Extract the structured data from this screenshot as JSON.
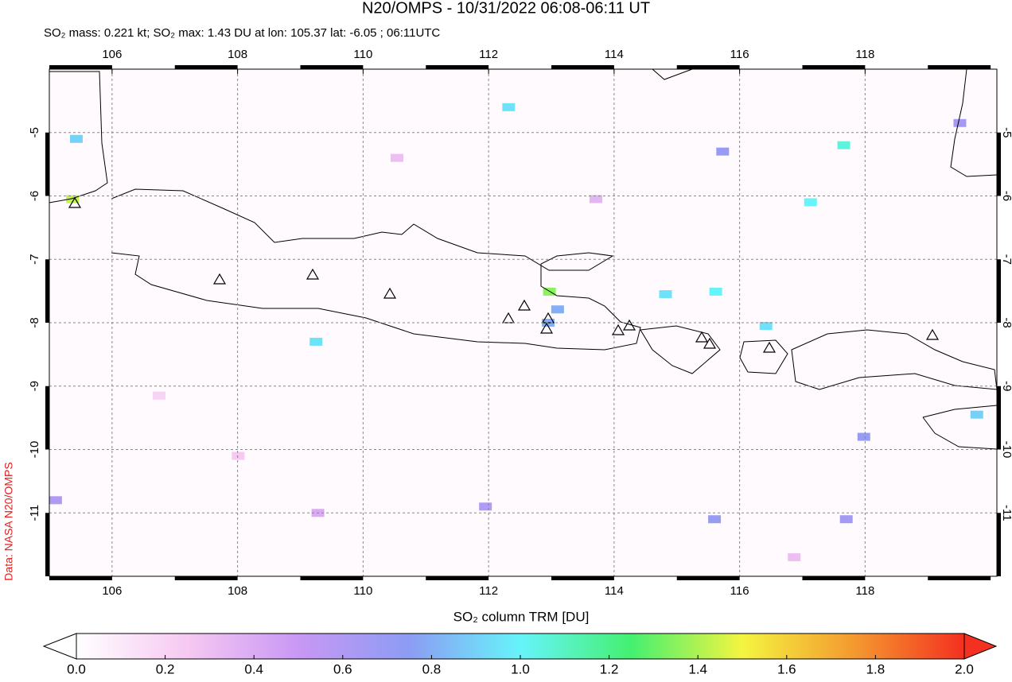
{
  "title": "N20/OMPS - 10/31/2022 06:08-06:11 UT",
  "subtitle": "SO₂ mass: 0.221 kt; SO₂ max: 1.43 DU at lon: 105.37 lat: -6.05 ; 06:11UTC",
  "credit": "Data: NASA N20/OMPS",
  "map": {
    "xlim": [
      105,
      120.1
    ],
    "ylim": [
      -12,
      -4
    ],
    "xticks": [
      106,
      108,
      110,
      112,
      114,
      116,
      118
    ],
    "yticks": [
      -5,
      -6,
      -7,
      -8,
      -9,
      -10,
      -11
    ],
    "grid": true,
    "pixels": [
      {
        "lon": 105.37,
        "lat": -6.05,
        "value": 1.43
      },
      {
        "lon": 112.97,
        "lat": -7.51,
        "value": 1.35
      },
      {
        "lon": 117.66,
        "lat": -5.2,
        "value": 1.05
      },
      {
        "lon": 117.13,
        "lat": -6.1,
        "value": 1.0
      },
      {
        "lon": 115.62,
        "lat": -7.51,
        "value": 1.0
      },
      {
        "lon": 114.82,
        "lat": -7.55,
        "value": 0.95
      },
      {
        "lon": 116.42,
        "lat": -8.05,
        "value": 0.95
      },
      {
        "lon": 112.32,
        "lat": -4.6,
        "value": 0.95
      },
      {
        "lon": 109.25,
        "lat": -8.3,
        "value": 0.95
      },
      {
        "lon": 105.43,
        "lat": -5.1,
        "value": 0.9
      },
      {
        "lon": 119.78,
        "lat": -9.45,
        "value": 0.9
      },
      {
        "lon": 113.1,
        "lat": -7.79,
        "value": 0.8
      },
      {
        "lon": 112.95,
        "lat": -8.0,
        "value": 0.8
      },
      {
        "lon": 115.73,
        "lat": -5.3,
        "value": 0.7
      },
      {
        "lon": 117.98,
        "lat": -9.8,
        "value": 0.7
      },
      {
        "lon": 115.6,
        "lat": -11.1,
        "value": 0.7
      },
      {
        "lon": 117.7,
        "lat": -11.1,
        "value": 0.65
      },
      {
        "lon": 119.51,
        "lat": -4.85,
        "value": 0.65
      },
      {
        "lon": 111.95,
        "lat": -10.9,
        "value": 0.6
      },
      {
        "lon": 105.1,
        "lat": -10.8,
        "value": 0.6
      },
      {
        "lon": 108.01,
        "lat": -10.1,
        "value": 0.25
      },
      {
        "lon": 110.54,
        "lat": -5.4,
        "value": 0.3
      },
      {
        "lon": 106.75,
        "lat": -9.15,
        "value": 0.2
      },
      {
        "lon": 116.87,
        "lat": -11.7,
        "value": 0.3
      },
      {
        "lon": 113.71,
        "lat": -6.05,
        "value": 0.35
      },
      {
        "lon": 109.28,
        "lat": -11.0,
        "value": 0.4
      }
    ]
  },
  "colorbar": {
    "label": "SO₂ column TRM [DU]",
    "lim": [
      0,
      2
    ],
    "colors": [
      "#ffffff",
      "#f6c8f2",
      "#c898f4",
      "#8c9cf4",
      "#66f4fa",
      "#44f070",
      "#f4f440",
      "#f49a30",
      "#f43020"
    ],
    "ticks": [
      {
        "value": 0,
        "label": "0.0"
      },
      {
        "value": 0.2,
        "label": "0.2"
      },
      {
        "value": 0.4,
        "label": "0.4"
      },
      {
        "value": 0.6,
        "label": "0.6"
      },
      {
        "value": 0.8,
        "label": "0.8"
      },
      {
        "value": 1.0,
        "label": "1.0"
      },
      {
        "value": 1.2,
        "label": "1.2"
      },
      {
        "value": 1.4,
        "label": "1.4"
      },
      {
        "value": 1.6,
        "label": "1.6"
      },
      {
        "value": 1.8,
        "label": "1.8"
      },
      {
        "value": 2.0,
        "label": "2.0"
      }
    ]
  }
}
